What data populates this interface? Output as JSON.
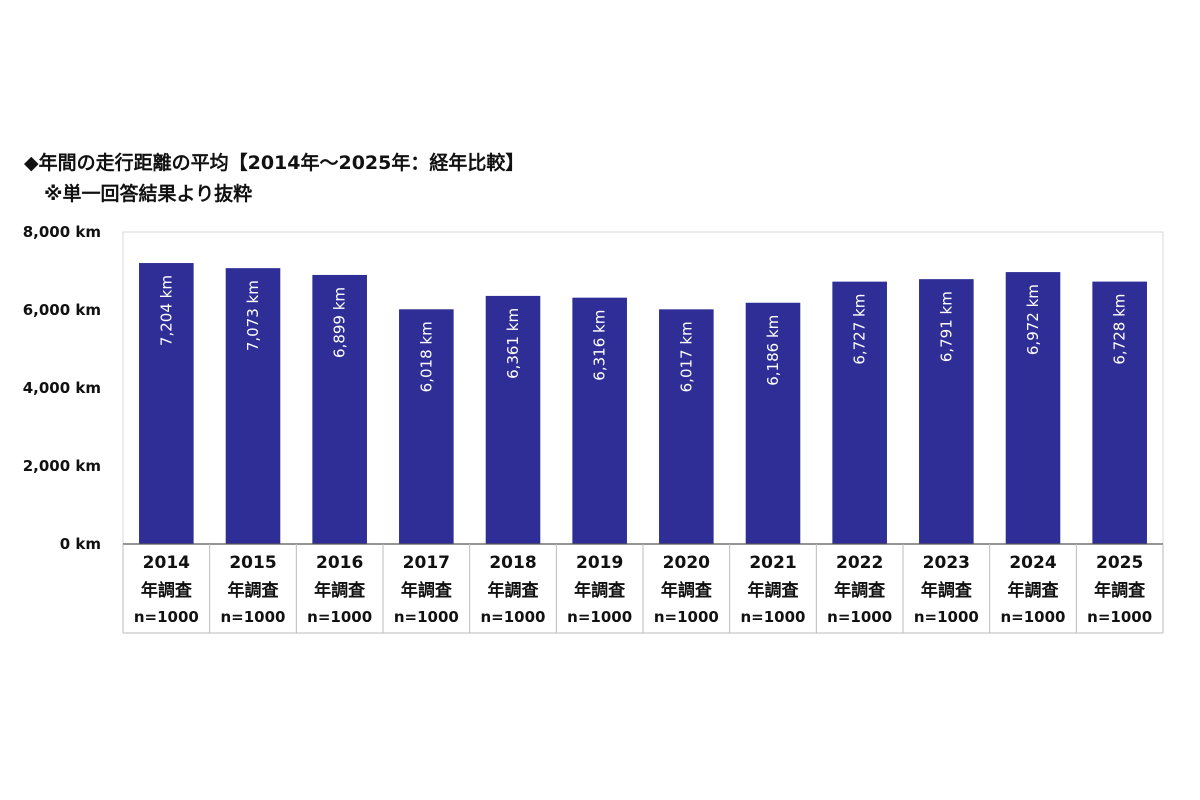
{
  "title": {
    "line1": "◆年間の走行距離の平均【2014年～2025年：経年比較】",
    "line2": "※単一回答結果より抜粋"
  },
  "colors": {
    "bar": "#2E2E96",
    "grid": "#d9d9d9",
    "table_border": "#bbbbbb"
  },
  "chart_data": {
    "type": "bar",
    "title": "◆年間の走行距離の平均【2014年～2025年：経年比較】",
    "subtitle": "※単一回答結果より抜粋",
    "categories": [
      "2014",
      "2015",
      "2016",
      "2017",
      "2018",
      "2019",
      "2020",
      "2021",
      "2022",
      "2023",
      "2024",
      "2025"
    ],
    "category_line2": "年調査",
    "category_line3": "n=1000",
    "values": [
      7204,
      7073,
      6899,
      6018,
      6361,
      6316,
      6017,
      6186,
      6727,
      6791,
      6972,
      6728
    ],
    "data_labels": [
      "7,204 km",
      "7,073 km",
      "6,899 km",
      "6,018 km",
      "6,361 km",
      "6,316 km",
      "6,017 km",
      "6,186 km",
      "6,727 km",
      "6,791 km",
      "6,972 km",
      "6,728 km"
    ],
    "yticks": [
      "0 km",
      "2,000 km",
      "4,000 km",
      "6,000 km",
      "8,000 km"
    ],
    "ylim": [
      0,
      8000
    ],
    "grid": false,
    "legend": "none"
  }
}
